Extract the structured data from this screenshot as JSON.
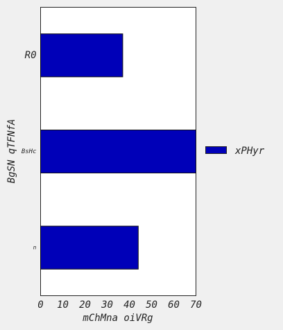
{
  "chart_data": {
    "type": "bar",
    "orientation": "horizontal",
    "categories": [
      "R0",
      "BsHc",
      "n"
    ],
    "series": [
      {
        "name": "xPHyr",
        "values": [
          37,
          70,
          44
        ],
        "color": "#0000b8"
      }
    ],
    "xlabel": "mChMna oiVRg",
    "ylabel": "BgSN qTFNfA",
    "xlim": [
      0,
      70
    ],
    "xticks": [
      0,
      10,
      20,
      30,
      40,
      50,
      60,
      70
    ],
    "grid": false,
    "legend_position": "right"
  }
}
